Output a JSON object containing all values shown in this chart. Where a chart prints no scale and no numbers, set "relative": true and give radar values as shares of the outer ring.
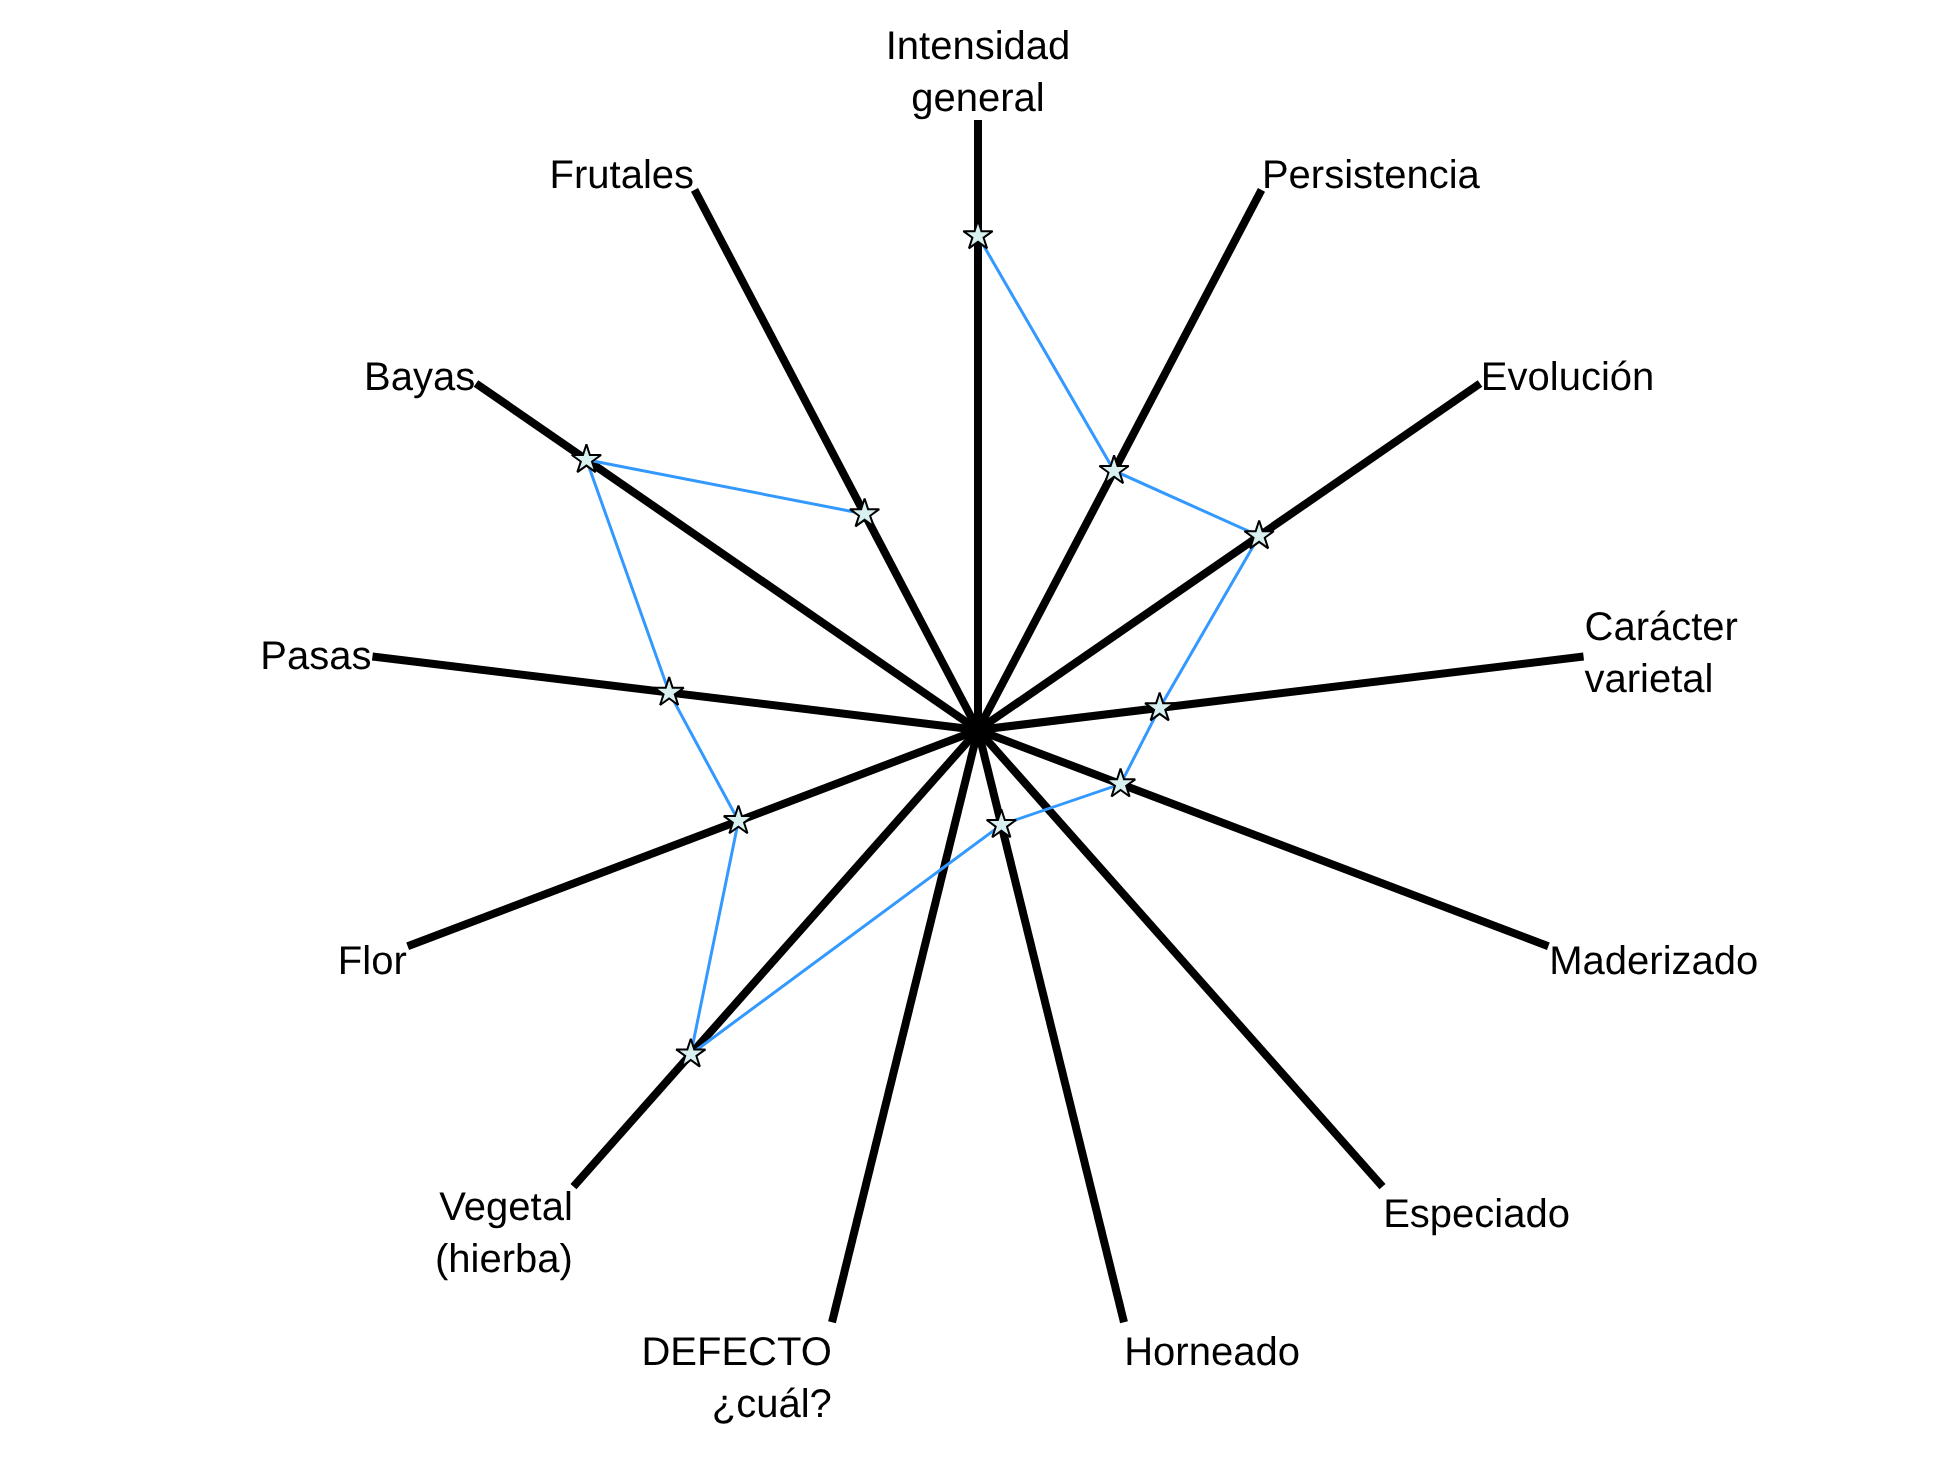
{
  "chart_data": {
    "type": "radar",
    "relative": true,
    "categories": [
      "Intensidad general",
      "Persistencia",
      "Evolución",
      "Carácter varietal",
      "Maderizado",
      "Especiado",
      "Horneado",
      "DEFECTO ¿cuál?",
      "Vegetal (hierba)",
      "Flor",
      "Pasas",
      "Bayas",
      "Frutales"
    ],
    "series": [
      {
        "color": "#3399ff",
        "values": [
          0.81,
          0.48,
          0.56,
          0.3,
          0.25,
          null,
          0.16,
          null,
          0.71,
          0.42,
          0.51,
          0.78,
          0.4
        ]
      }
    ],
    "marker": "star",
    "grid": true,
    "legend": false
  }
}
